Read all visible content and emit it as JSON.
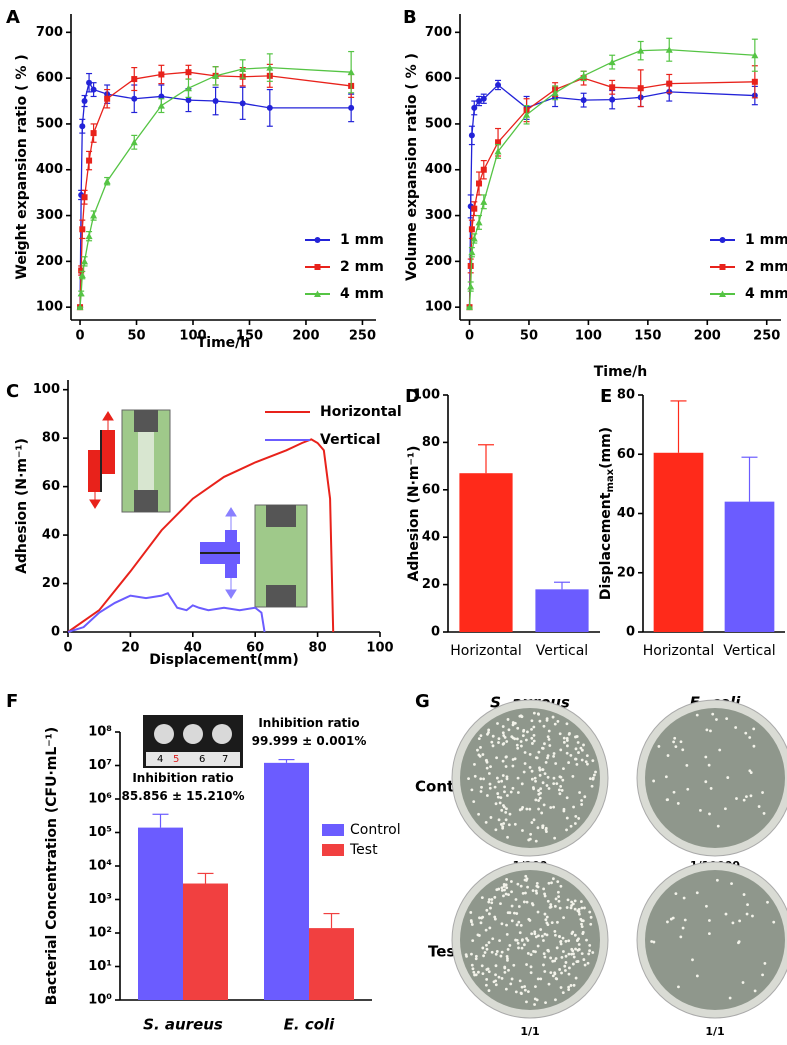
{
  "chart_data": [
    {
      "type": "line",
      "panel_label": "A",
      "y_label": "Weight expansion ratio ( % )",
      "x_label": "Time/h",
      "x": [
        0,
        1,
        2,
        4,
        8,
        12,
        24,
        48,
        72,
        96,
        120,
        144,
        168,
        240
      ],
      "series": [
        {
          "name": "1 mm",
          "color": "#2323d8",
          "marker": "circle",
          "values": [
            100,
            345,
            495,
            550,
            590,
            575,
            565,
            555,
            560,
            552,
            550,
            545,
            535,
            535
          ],
          "errors": [
            0,
            10,
            15,
            12,
            20,
            15,
            20,
            30,
            25,
            25,
            30,
            35,
            40,
            30
          ]
        },
        {
          "name": "2 mm",
          "color": "#e8221b",
          "marker": "square",
          "values": [
            100,
            180,
            270,
            340,
            420,
            480,
            555,
            598,
            608,
            613,
            605,
            603,
            605,
            583
          ],
          "errors": [
            0,
            10,
            20,
            15,
            20,
            20,
            20,
            25,
            20,
            15,
            20,
            20,
            25,
            25
          ]
        },
        {
          "name": "4 mm",
          "color": "#55c444",
          "marker": "triangle",
          "values": [
            100,
            130,
            170,
            200,
            255,
            300,
            375,
            460,
            540,
            578,
            605,
            620,
            623,
            613
          ],
          "errors": [
            0,
            5,
            8,
            10,
            10,
            10,
            8,
            15,
            15,
            20,
            20,
            20,
            30,
            45
          ]
        }
      ],
      "xlim": [
        -8,
        262
      ],
      "ylim": [
        72,
        740
      ],
      "xticks": [
        0,
        50,
        100,
        150,
        200,
        250
      ],
      "yticks": [
        100,
        200,
        300,
        400,
        500,
        600,
        700
      ],
      "legend": "lower right"
    },
    {
      "type": "line",
      "panel_label": "B",
      "y_label": "Volume expansion ratio ( % )",
      "x_label": "Time/h",
      "x": [
        0,
        1,
        2,
        4,
        8,
        12,
        24,
        48,
        72,
        96,
        120,
        144,
        168,
        240
      ],
      "series": [
        {
          "name": "1 mm",
          "color": "#2323d8",
          "marker": "circle",
          "values": [
            100,
            320,
            475,
            535,
            550,
            555,
            585,
            535,
            558,
            552,
            553,
            558,
            570,
            562
          ],
          "errors": [
            0,
            25,
            20,
            15,
            10,
            10,
            10,
            25,
            20,
            15,
            20,
            20,
            20,
            20
          ]
        },
        {
          "name": "2 mm",
          "color": "#e8221b",
          "marker": "square",
          "values": [
            100,
            190,
            270,
            315,
            370,
            400,
            460,
            530,
            575,
            600,
            580,
            578,
            588,
            592
          ],
          "errors": [
            0,
            15,
            20,
            15,
            25,
            20,
            30,
            25,
            15,
            15,
            15,
            40,
            20,
            35
          ]
        },
        {
          "name": "4 mm",
          "color": "#55c444",
          "marker": "triangle",
          "values": [
            100,
            145,
            220,
            250,
            285,
            330,
            440,
            520,
            568,
            605,
            635,
            660,
            662,
            650
          ],
          "errors": [
            0,
            10,
            10,
            10,
            15,
            15,
            15,
            20,
            15,
            10,
            15,
            20,
            25,
            35
          ]
        }
      ],
      "xlim": [
        -8,
        262
      ],
      "ylim": [
        72,
        740
      ],
      "xticks": [
        0,
        50,
        100,
        150,
        200,
        250
      ],
      "yticks": [
        100,
        200,
        300,
        400,
        500,
        600,
        700
      ],
      "legend": "lower right"
    },
    {
      "type": "line",
      "panel_label": "C",
      "y_label": "Adhesion (N·m⁻¹)",
      "x_label": "Displacement(mm)",
      "series": [
        {
          "name": "Horizontal",
          "color": "#e8221b",
          "x": [
            0,
            10,
            20,
            30,
            40,
            50,
            60,
            70,
            75,
            78,
            80,
            82,
            84,
            85
          ],
          "values": [
            0,
            9,
            25,
            42,
            55,
            64,
            70,
            75,
            78,
            79.5,
            78,
            75,
            55,
            0
          ]
        },
        {
          "name": "Vertical",
          "color": "#6b5cff",
          "x": [
            0,
            5,
            10,
            15,
            20,
            25,
            30,
            32,
            35,
            38,
            40,
            42,
            45,
            50,
            55,
            60,
            62,
            63
          ],
          "values": [
            0,
            2,
            8,
            12,
            15,
            14,
            15,
            16,
            10,
            9,
            11,
            10,
            9,
            10,
            9,
            10,
            8,
            0
          ]
        }
      ],
      "xlim": [
        0,
        100
      ],
      "ylim": [
        0,
        104
      ],
      "xticks": [
        0,
        20,
        40,
        60,
        80,
        100
      ],
      "yticks": [
        0,
        20,
        40,
        60,
        80,
        100
      ],
      "legend": "upper right"
    },
    {
      "type": "bar",
      "panel_label": "D",
      "y_label": "Adhesion (N·m⁻¹)",
      "categories": [
        "Horizontal",
        "Vertical"
      ],
      "values": [
        67,
        18
      ],
      "errors": [
        12,
        3
      ],
      "colors": [
        "#ff2a1a",
        "#6b5cff"
      ],
      "ylim": [
        0,
        100
      ],
      "yticks": [
        0,
        20,
        40,
        60,
        80,
        100
      ]
    },
    {
      "type": "bar",
      "panel_label": "E",
      "y_label": "Displacement",
      "y_label_sub": "max",
      "y_label_unit": "(mm)",
      "categories": [
        "Horizontal",
        "Vertical"
      ],
      "values": [
        60.5,
        44
      ],
      "errors": [
        17.5,
        15
      ],
      "colors": [
        "#ff2a1a",
        "#6b5cff"
      ],
      "ylim": [
        0,
        80
      ],
      "yticks": [
        0,
        20,
        40,
        60,
        80
      ]
    },
    {
      "type": "bar",
      "panel_label": "F",
      "y_label": "Bacterial Concentration (CFU·mL⁻¹)",
      "categories": [
        "S. aureus",
        "E. coli"
      ],
      "series": [
        {
          "name": "Control",
          "color": "#6b5cff",
          "values": [
            140000,
            12000000
          ],
          "errors": [
            210000,
            3000000
          ]
        },
        {
          "name": "Test",
          "color": "#f14040",
          "values": [
            3000,
            140
          ],
          "errors": [
            3000,
            240
          ]
        }
      ],
      "log_scale": true,
      "ylim": [
        1,
        100000000
      ],
      "yticks": [
        {
          "value": 1,
          "label": "10⁰"
        },
        {
          "value": 10,
          "label": "10¹"
        },
        {
          "value": 100,
          "label": "10²"
        },
        {
          "value": 1000,
          "label": "10³"
        },
        {
          "value": 10000,
          "label": "10⁴"
        },
        {
          "value": 100000,
          "label": "10⁵"
        },
        {
          "value": 1000000,
          "label": "10⁶"
        },
        {
          "value": 10000000,
          "label": "10⁷"
        },
        {
          "value": 100000000,
          "label": "10⁸"
        }
      ],
      "annotations": [
        [
          "Inhibition ratio",
          "85.856 ± 15.210%"
        ],
        [
          "Inhibition ratio",
          "99.999 ± 0.001%"
        ]
      ],
      "inset_labels": [
        "4",
        "5",
        "6",
        "7"
      ],
      "legend": "right"
    }
  ],
  "plates": {
    "panel_label": "G",
    "columns": [
      "S. aureus",
      "E. coli"
    ],
    "rows": [
      "Control",
      "Test"
    ],
    "dilutions": [
      [
        "1/100",
        "1/10000"
      ],
      [
        "1/1",
        "1/1"
      ]
    ]
  }
}
